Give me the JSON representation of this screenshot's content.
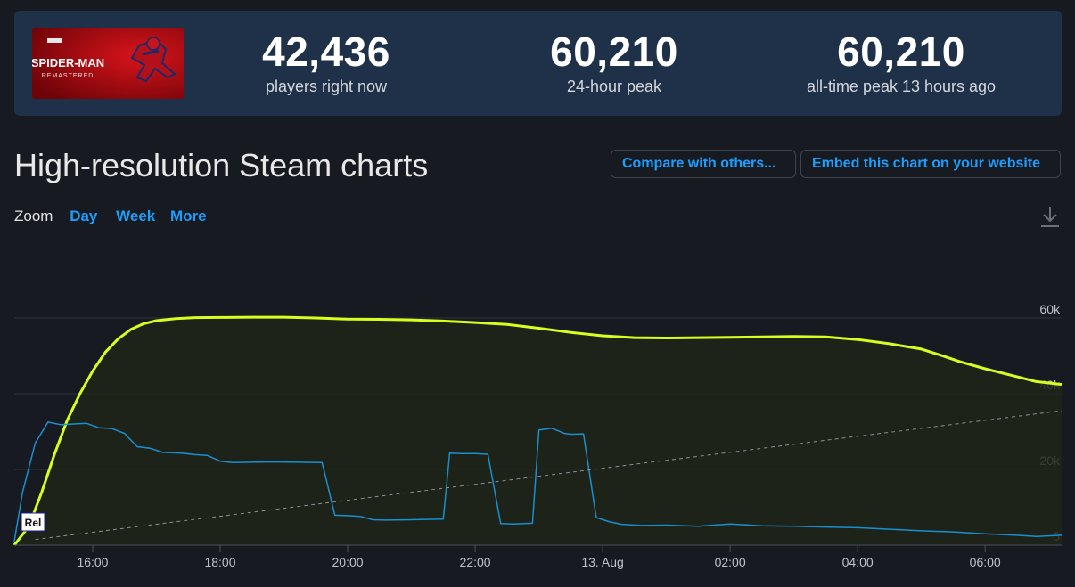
{
  "game": {
    "logo_lines": [
      "SPIDER-MAN",
      "REMASTERED"
    ]
  },
  "stats": [
    {
      "value": "42,436",
      "label": "players right now"
    },
    {
      "value": "60,210",
      "label": "24-hour peak"
    },
    {
      "value": "60,210",
      "label": "all-time peak 13 hours ago"
    }
  ],
  "page": {
    "title": "High-resolution Steam charts",
    "compare_label": "Compare with others...",
    "embed_label": "Embed this chart on your website"
  },
  "zoom": {
    "label": "Zoom",
    "options": [
      "Day",
      "Week",
      "More"
    ]
  },
  "colors": {
    "players_line": "#d4ff1f",
    "twitch_line": "#1a8fd0",
    "accent": "#1a9fff",
    "background": "#171a21",
    "panel": "#1f3148"
  },
  "chart_data": {
    "type": "line",
    "x_ticks": [
      "16:00",
      "18:00",
      "20:00",
      "22:00",
      "13. Aug",
      "02:00",
      "04:00",
      "06:00"
    ],
    "x_tick_hours": [
      16,
      18,
      20,
      22,
      24,
      26,
      28,
      30
    ],
    "xlim_hours": [
      14.77,
      31.2
    ],
    "y_ticks": [
      0,
      20000,
      40000,
      60000
    ],
    "y_tick_labels": [
      "0",
      "20k",
      "40k",
      "60k"
    ],
    "ylim": [
      0,
      60000
    ],
    "grid": true,
    "flag_label": "Rel",
    "flag_hour": 15.05,
    "series": [
      {
        "role": "players",
        "area": true,
        "points": [
          [
            14.77,
            0
          ],
          [
            15.0,
            5000
          ],
          [
            15.2,
            14000
          ],
          [
            15.4,
            24000
          ],
          [
            15.6,
            33000
          ],
          [
            15.8,
            40000
          ],
          [
            16.0,
            46000
          ],
          [
            16.2,
            51000
          ],
          [
            16.4,
            54500
          ],
          [
            16.6,
            57000
          ],
          [
            16.8,
            58500
          ],
          [
            17.0,
            59300
          ],
          [
            17.3,
            59800
          ],
          [
            17.6,
            60100
          ],
          [
            18.0,
            60150
          ],
          [
            18.5,
            60200
          ],
          [
            19.0,
            60210
          ],
          [
            19.5,
            60000
          ],
          [
            20.0,
            59700
          ],
          [
            20.5,
            59650
          ],
          [
            21.0,
            59500
          ],
          [
            21.5,
            59200
          ],
          [
            22.0,
            58800
          ],
          [
            22.5,
            58300
          ],
          [
            23.0,
            57300
          ],
          [
            23.5,
            56200
          ],
          [
            24.0,
            55300
          ],
          [
            24.5,
            54800
          ],
          [
            25.0,
            54700
          ],
          [
            25.5,
            54800
          ],
          [
            26.0,
            54900
          ],
          [
            26.5,
            55000
          ],
          [
            27.0,
            55100
          ],
          [
            27.5,
            55000
          ],
          [
            28.0,
            54300
          ],
          [
            28.5,
            53200
          ],
          [
            29.0,
            51800
          ],
          [
            29.3,
            50200
          ],
          [
            29.6,
            48500
          ],
          [
            30.0,
            46600
          ],
          [
            30.5,
            44500
          ],
          [
            30.8,
            43200
          ],
          [
            31.2,
            42436
          ]
        ]
      },
      {
        "role": "twitch",
        "area": false,
        "points": [
          [
            14.77,
            1000
          ],
          [
            14.9,
            14000
          ],
          [
            15.1,
            27000
          ],
          [
            15.3,
            32500
          ],
          [
            15.5,
            31800
          ],
          [
            15.7,
            32000
          ],
          [
            15.9,
            32200
          ],
          [
            16.1,
            31000
          ],
          [
            16.3,
            30800
          ],
          [
            16.5,
            29500
          ],
          [
            16.7,
            26000
          ],
          [
            16.9,
            25600
          ],
          [
            17.1,
            24500
          ],
          [
            17.4,
            24300
          ],
          [
            17.6,
            23900
          ],
          [
            17.8,
            23700
          ],
          [
            18.0,
            22200
          ],
          [
            18.2,
            21800
          ],
          [
            18.5,
            21900
          ],
          [
            18.8,
            22000
          ],
          [
            19.2,
            21900
          ],
          [
            19.6,
            21800
          ],
          [
            19.8,
            7900
          ],
          [
            20.0,
            7800
          ],
          [
            20.2,
            7600
          ],
          [
            20.4,
            6700
          ],
          [
            20.6,
            6600
          ],
          [
            21.0,
            6700
          ],
          [
            21.2,
            6800
          ],
          [
            21.5,
            6900
          ],
          [
            21.6,
            24300
          ],
          [
            21.8,
            24200
          ],
          [
            22.0,
            24200
          ],
          [
            22.2,
            24000
          ],
          [
            22.4,
            5700
          ],
          [
            22.6,
            5600
          ],
          [
            22.9,
            5800
          ],
          [
            23.0,
            30400
          ],
          [
            23.2,
            30900
          ],
          [
            23.4,
            29500
          ],
          [
            23.5,
            29300
          ],
          [
            23.7,
            29400
          ],
          [
            23.9,
            7300
          ],
          [
            24.1,
            6200
          ],
          [
            24.3,
            5500
          ],
          [
            24.6,
            5200
          ],
          [
            25.0,
            5300
          ],
          [
            25.5,
            5000
          ],
          [
            26.0,
            5600
          ],
          [
            26.5,
            5100
          ],
          [
            27.0,
            5000
          ],
          [
            27.5,
            4800
          ],
          [
            28.0,
            4600
          ],
          [
            28.5,
            4200
          ],
          [
            29.0,
            3800
          ],
          [
            29.5,
            3500
          ],
          [
            30.0,
            3000
          ],
          [
            30.5,
            2600
          ],
          [
            30.8,
            2300
          ],
          [
            31.2,
            2600
          ]
        ]
      },
      {
        "role": "trend",
        "area": false,
        "points": [
          [
            15.1,
            1500
          ],
          [
            31.2,
            35500
          ]
        ]
      }
    ]
  }
}
